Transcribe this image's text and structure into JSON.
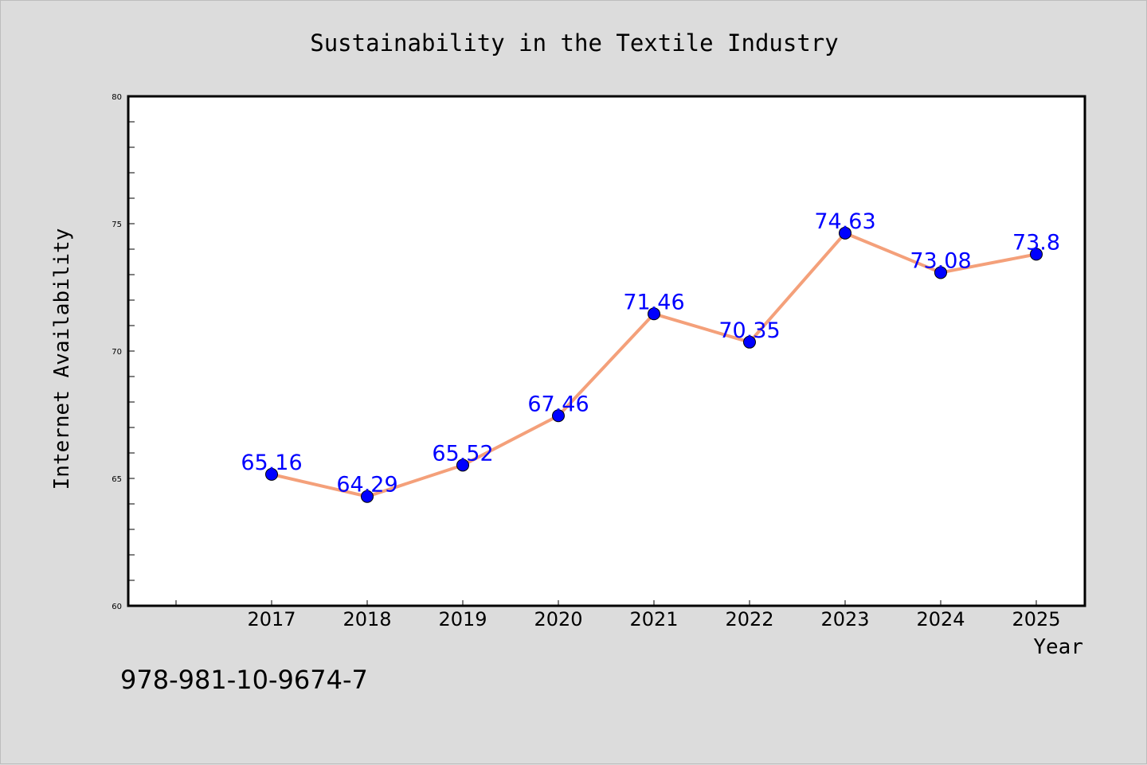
{
  "chart_data": {
    "type": "line",
    "title": "Sustainability in the Textile Industry",
    "xlabel": "Year",
    "ylabel": "Internet Availability",
    "categories": [
      "2017",
      "2018",
      "2019",
      "2020",
      "2021",
      "2022",
      "2023",
      "2024",
      "2025"
    ],
    "series": [
      {
        "values": [
          65.16,
          64.29,
          65.52,
          67.46,
          71.46,
          70.35,
          74.63,
          73.08,
          73.8
        ],
        "data_labels": [
          "65.16",
          "64.29",
          "65.52",
          "67.46",
          "71.46",
          "70.35",
          "74.63",
          "73.08",
          "73.8"
        ],
        "line_color": "#f4a07a",
        "marker_color": "#0000ff",
        "label_color": "#0000ff"
      }
    ],
    "ylim": [
      60,
      80
    ],
    "yticks": [
      "60",
      "65",
      "70",
      "75",
      "80"
    ],
    "grid": false,
    "legend": "none"
  },
  "footer_text": "978-981-10-9674-7",
  "colors": {
    "background": "#dcdcdc",
    "plot_background": "#ffffff",
    "axis": "#000000"
  }
}
